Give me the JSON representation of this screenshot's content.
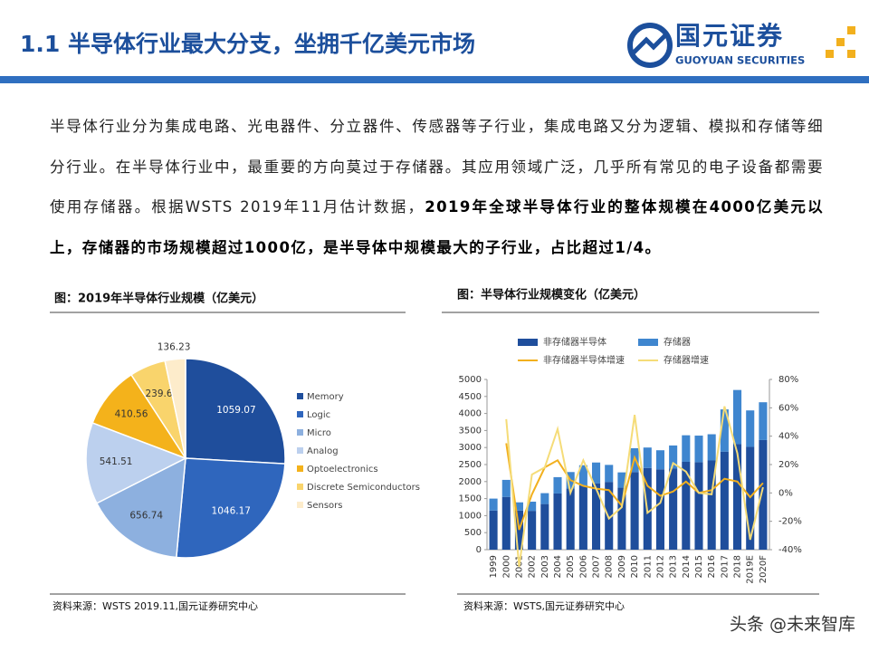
{
  "header": {
    "title": "1.1 半导体行业最大分支，坐拥千亿美元市场",
    "logo_name": "国元证券",
    "logo_sub": "GUOYUAN SECURITIES"
  },
  "body": [
    "半导体行业分为集成电路、光电器件、分立器件、传感器等子行业，集成电路又分为逻辑、模拟和存储等细分行业。在半导体行业中，最重要的方向莫过于存储器。其应用领域广泛，几乎所有常见的电子设备都需要使用存储器。根据WSTS 2019年11月估计数据，",
    "2019年全球半导体行业的整体规模在4000亿美元以上，存储器的市场规模超过1000亿，是半导体中规模最大的子行业，占比超过1/4。"
  ],
  "watermark": "头条 @未来智库",
  "chart_data": [
    {
      "type": "pie",
      "title": "图：2019年半导体行业规模（亿美元）",
      "source": "资料来源：WSTS 2019.11,国元证券研究中心",
      "categories": [
        "Memory",
        "Logic",
        "Micro",
        "Analog",
        "Optoelectronics",
        "Discrete Semiconductors",
        "Sensors"
      ],
      "values": [
        1059.07,
        1046.17,
        656.74,
        541.51,
        410.56,
        239.6,
        136.23
      ],
      "colors": [
        "#1f4e9c",
        "#2f66bd",
        "#8db0df",
        "#bcd0ee",
        "#f4b21b",
        "#f9d46c",
        "#fdeccb"
      ]
    },
    {
      "type": "bar",
      "title": "图：半导体行业规模变化（亿美元）",
      "source": "资料来源：WSTS,国元证券研究中心",
      "categories": [
        "1999",
        "2000",
        "2001",
        "2002",
        "2003",
        "2004",
        "2005",
        "2006",
        "2007",
        "2008",
        "2009",
        "2010",
        "2011",
        "2012",
        "2013",
        "2014",
        "2015",
        "2016",
        "2017",
        "2018",
        "2019E",
        "2020F"
      ],
      "series": [
        {
          "name": "非存储器半导体",
          "type": "bar",
          "color": "#1f4e9c",
          "values": [
            1150,
            1550,
            1150,
            1140,
            1340,
            1650,
            1800,
            1890,
            1950,
            1990,
            1820,
            2280,
            2400,
            2360,
            2380,
            2580,
            2570,
            2620,
            2880,
            3100,
            3020,
            3220
          ]
        },
        {
          "name": "存储器",
          "type": "bar",
          "color": "#3f86cf",
          "values": [
            350,
            500,
            240,
            270,
            320,
            480,
            480,
            590,
            610,
            500,
            450,
            700,
            600,
            560,
            680,
            780,
            780,
            770,
            1240,
            1590,
            1070,
            1110
          ]
        },
        {
          "name": "非存储器半导体增速",
          "type": "line",
          "axis": "y2",
          "color": "#f2b01e",
          "values": [
            null,
            35,
            -26,
            -1,
            18,
            23,
            9,
            5,
            3,
            2,
            -9,
            25,
            5,
            -2,
            1,
            8,
            0,
            2,
            10,
            8,
            -3,
            7
          ]
        },
        {
          "name": "存储器增速",
          "type": "line",
          "axis": "y2",
          "color": "#f5dc78",
          "values": [
            null,
            52,
            -52,
            13,
            18,
            45,
            0,
            23,
            3,
            -18,
            -10,
            55,
            -14,
            -7,
            21,
            15,
            0,
            -1,
            61,
            28,
            -33,
            4
          ]
        }
      ],
      "ylim": [
        0,
        5000
      ],
      "yticks": [
        0,
        500,
        1000,
        1500,
        2000,
        2500,
        3000,
        3500,
        4000,
        4500,
        5000
      ],
      "y2lim": [
        -40,
        80
      ],
      "y2ticks": [
        {
          "value": -40,
          "label": "-40%"
        },
        {
          "value": -20,
          "label": "-20%"
        },
        {
          "value": 0,
          "label": "0%"
        },
        {
          "value": 20,
          "label": "20%"
        },
        {
          "value": 40,
          "label": "40%"
        },
        {
          "value": 60,
          "label": "60%"
        },
        {
          "value": 80,
          "label": "80%"
        }
      ]
    }
  ]
}
